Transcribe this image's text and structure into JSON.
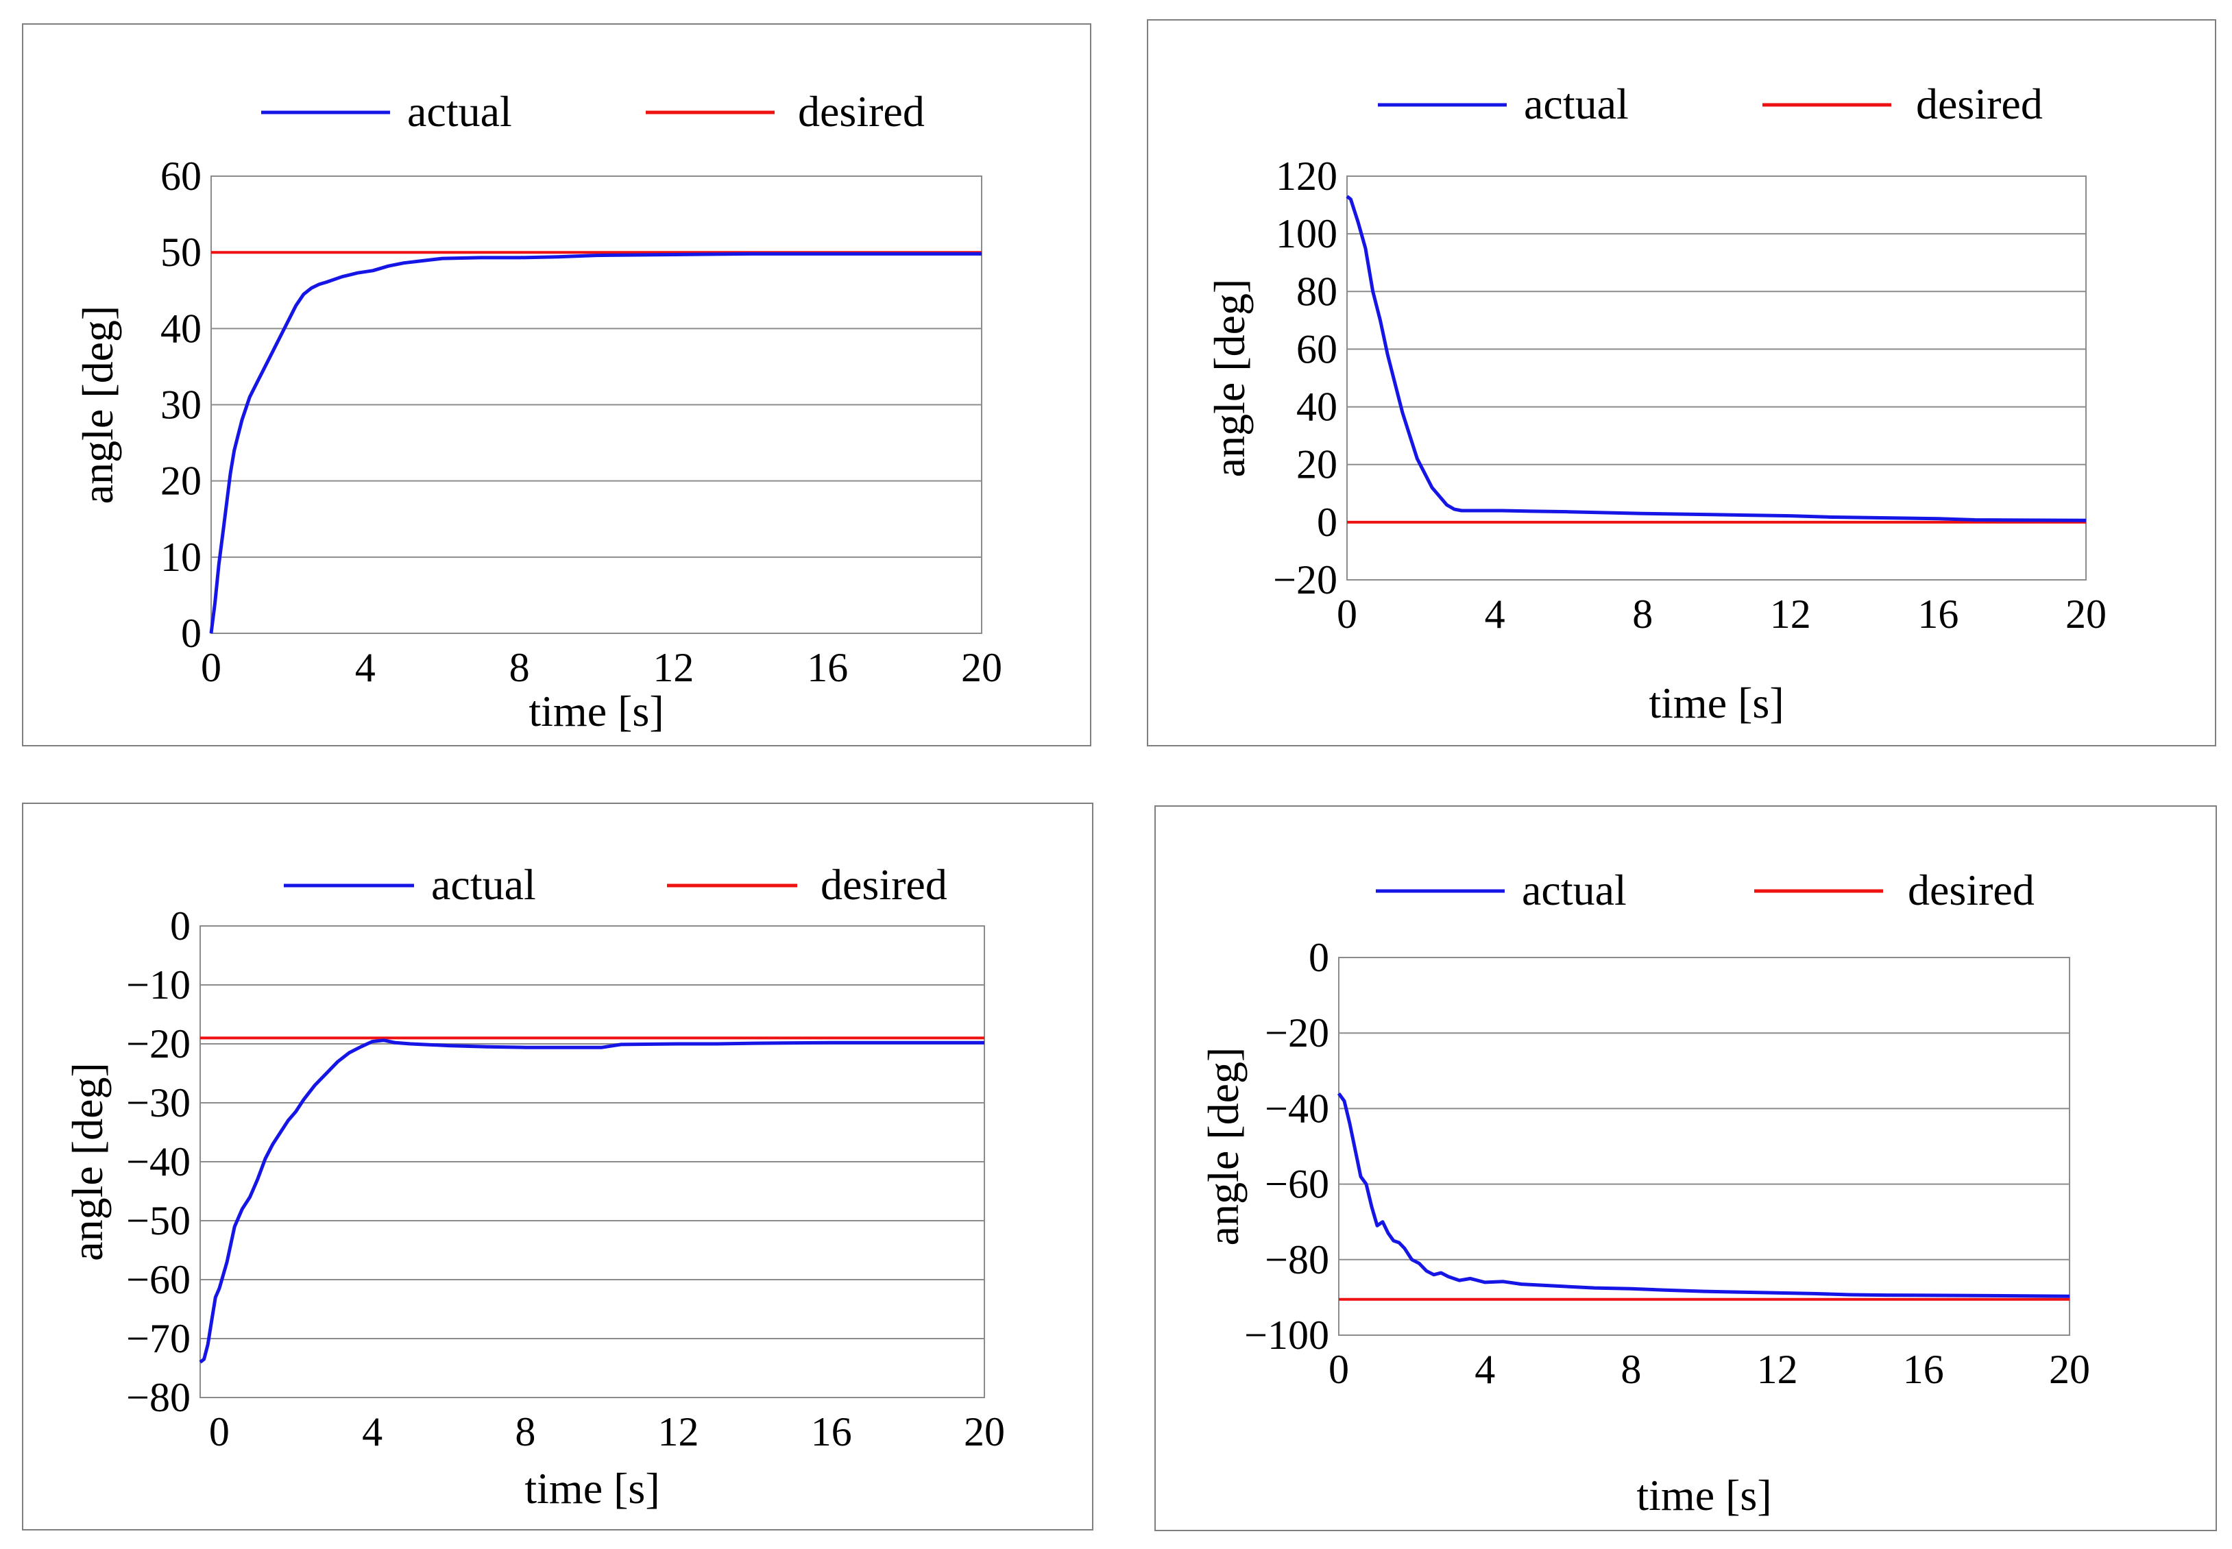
{
  "colors": {
    "actual": "#1515e6",
    "desired": "#ee1111",
    "grid": "#8c8c8c",
    "frame": "#7f7f7f"
  },
  "chart_data": [
    {
      "type": "line",
      "xlabel": "time [s]",
      "ylabel": "angle [deg]",
      "xlim": [
        0,
        20
      ],
      "ylim": [
        0,
        60
      ],
      "xticks": [
        0,
        4,
        8,
        12,
        16,
        20
      ],
      "xtick_labels": [
        "0",
        "4",
        "8",
        "12",
        "16",
        "20"
      ],
      "yticks": [
        0,
        10,
        20,
        30,
        40,
        50,
        60
      ],
      "ytick_labels": [
        "0",
        "10",
        "20",
        "30",
        "40",
        "50",
        "60"
      ],
      "grid": true,
      "legend": "top",
      "series": [
        {
          "name": "actual",
          "x": [
            0,
            0.1,
            0.2,
            0.3,
            0.4,
            0.5,
            0.6,
            0.7,
            0.8,
            1.0,
            1.2,
            1.4,
            1.6,
            1.8,
            2.0,
            2.2,
            2.4,
            2.6,
            2.8,
            3.0,
            3.4,
            3.8,
            4.2,
            4.6,
            5.0,
            5.5,
            6.0,
            7.0,
            8.0,
            9.0,
            10.0,
            12.0,
            14.0,
            16.0,
            18.0,
            20.0
          ],
          "y": [
            0,
            4,
            9,
            13,
            17,
            21,
            24,
            26,
            28,
            31,
            33,
            35,
            37,
            39,
            41,
            43,
            44.5,
            45.3,
            45.8,
            46.1,
            46.8,
            47.3,
            47.6,
            48.2,
            48.6,
            48.9,
            49.2,
            49.3,
            49.3,
            49.4,
            49.6,
            49.7,
            49.8,
            49.8,
            49.8,
            49.8
          ]
        },
        {
          "name": "desired",
          "x": [
            0,
            20
          ],
          "y": [
            50,
            50
          ]
        }
      ]
    },
    {
      "type": "line",
      "xlabel": "time [s]",
      "ylabel": "angle [deg]",
      "xlim": [
        0,
        20
      ],
      "ylim": [
        -20,
        120
      ],
      "xticks": [
        0,
        4,
        8,
        12,
        16,
        20
      ],
      "xtick_labels": [
        "0",
        "4",
        "8",
        "12",
        "16",
        "20"
      ],
      "yticks": [
        -20,
        0,
        20,
        40,
        60,
        80,
        100,
        120
      ],
      "ytick_labels": [
        "−20",
        "0",
        "20",
        "40",
        "60",
        "80",
        "100",
        "120"
      ],
      "grid": true,
      "legend": "top",
      "series": [
        {
          "name": "actual",
          "x": [
            0,
            0.1,
            0.2,
            0.3,
            0.5,
            0.7,
            0.9,
            1.1,
            1.3,
            1.5,
            1.7,
            1.9,
            2.1,
            2.3,
            2.5,
            2.7,
            2.9,
            3.1,
            3.4,
            3.8,
            4.2,
            5.0,
            6.0,
            7.0,
            8.0,
            10.0,
            12.0,
            13.0,
            16.0,
            17.0,
            20.0
          ],
          "y": [
            113,
            112,
            108,
            104,
            95,
            80,
            70,
            58,
            48,
            38,
            30,
            22,
            17,
            12,
            9,
            6,
            4.5,
            4,
            4,
            4,
            4,
            3.8,
            3.6,
            3.3,
            3,
            2.6,
            2.2,
            1.8,
            1.2,
            0.8,
            0.6
          ]
        },
        {
          "name": "desired",
          "x": [
            0,
            20
          ],
          "y": [
            0,
            0
          ]
        }
      ]
    },
    {
      "type": "line",
      "xlabel": "time [s]",
      "ylabel": "angle [deg]",
      "xlim": [
        -0.5,
        20
      ],
      "ylim": [
        -80,
        0
      ],
      "xticks": [
        0,
        4,
        8,
        12,
        16,
        20
      ],
      "xtick_labels": [
        "0",
        "4",
        "8",
        "12",
        "16",
        "20"
      ],
      "yticks": [
        -80,
        -70,
        -60,
        -50,
        -40,
        -30,
        -20,
        -10,
        0
      ],
      "ytick_labels": [
        "−80",
        "−70",
        "−60",
        "−50",
        "−40",
        "−30",
        "−20",
        "−10",
        "0"
      ],
      "grid": true,
      "legend": "top",
      "series": [
        {
          "name": "actual",
          "x": [
            -0.5,
            -0.4,
            -0.3,
            -0.2,
            -0.1,
            0.0,
            0.2,
            0.4,
            0.6,
            0.8,
            1.0,
            1.2,
            1.4,
            1.6,
            1.8,
            2.0,
            2.2,
            2.5,
            2.8,
            3.1,
            3.4,
            3.7,
            4.0,
            4.3,
            4.6,
            5.0,
            6.0,
            7.0,
            8.0,
            10.0,
            10.5,
            12.0,
            13.0,
            14.0,
            16.0,
            20.0
          ],
          "y": [
            -74,
            -73.5,
            -71,
            -67,
            -63,
            -61.5,
            -57,
            -51,
            -48,
            -46,
            -43,
            -39.5,
            -37,
            -35,
            -33,
            -31.5,
            -29.5,
            -27,
            -25,
            -23,
            -21.5,
            -20.5,
            -19.6,
            -19.4,
            -19.8,
            -20,
            -20.3,
            -20.5,
            -20.6,
            -20.6,
            -20.1,
            -20,
            -20,
            -19.9,
            -19.8,
            -19.8
          ]
        },
        {
          "name": "desired",
          "x": [
            -0.5,
            20
          ],
          "y": [
            -19,
            -19
          ]
        }
      ]
    },
    {
      "type": "line",
      "xlabel": "time [s]",
      "ylabel": "angle [deg]",
      "xlim": [
        0,
        20
      ],
      "ylim": [
        -100,
        0
      ],
      "xticks": [
        0,
        4,
        8,
        12,
        16,
        20
      ],
      "xtick_labels": [
        "0",
        "4",
        "8",
        "12",
        "16",
        "20"
      ],
      "yticks": [
        -100,
        -80,
        -60,
        -40,
        -20,
        0
      ],
      "ytick_labels": [
        "−100",
        "−80",
        "−60",
        "−40",
        "−20",
        "0"
      ],
      "grid": true,
      "legend": "top",
      "series": [
        {
          "name": "actual",
          "x": [
            0,
            0.15,
            0.3,
            0.45,
            0.6,
            0.75,
            0.9,
            1.05,
            1.2,
            1.35,
            1.5,
            1.65,
            1.8,
            2.0,
            2.2,
            2.4,
            2.6,
            2.8,
            3.0,
            3.3,
            3.6,
            4.0,
            4.5,
            5.0,
            6.0,
            7.0,
            8.0,
            9.0,
            10.0,
            11.0,
            13.0,
            14.0,
            15.0,
            17.0,
            20.0
          ],
          "y": [
            -36,
            -38,
            -44,
            -51,
            -58,
            -60,
            -66,
            -71,
            -70,
            -73,
            -75,
            -75.5,
            -77,
            -80,
            -81,
            -83,
            -84,
            -83.5,
            -84.5,
            -85.5,
            -85,
            -86,
            -85.8,
            -86.5,
            -87,
            -87.5,
            -87.7,
            -88.1,
            -88.4,
            -88.6,
            -89,
            -89.3,
            -89.4,
            -89.5,
            -89.7
          ]
        },
        {
          "name": "desired",
          "x": [
            0,
            20
          ],
          "y": [
            -90.5,
            -90.5
          ]
        }
      ]
    }
  ]
}
